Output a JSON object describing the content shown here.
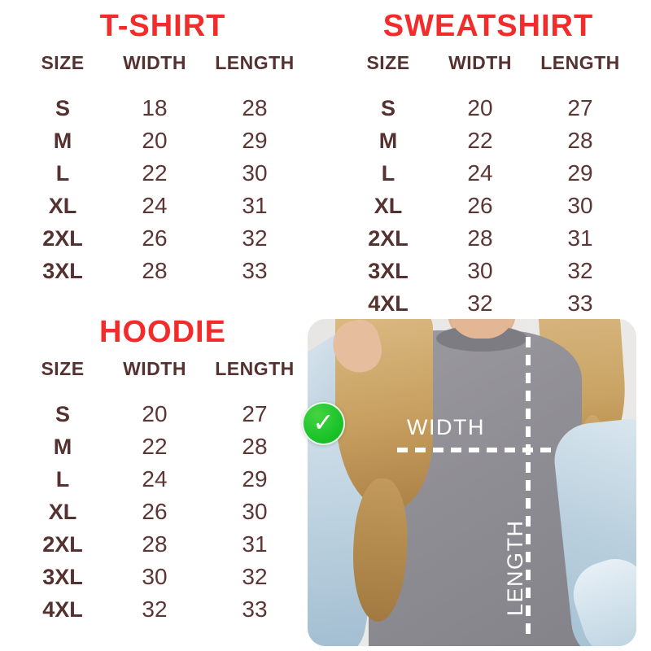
{
  "colors": {
    "title_red": "#f42b2b",
    "table_text": "#553130",
    "check_green": "#1cc32b",
    "annotation_white": "#ffffff"
  },
  "icons": {
    "check": "✓"
  },
  "tables": {
    "tshirt": {
      "title": "T-SHIRT",
      "headers": [
        "SIZE",
        "WIDTH",
        "LENGTH"
      ],
      "rows": [
        [
          "S",
          "18",
          "28"
        ],
        [
          "M",
          "20",
          "29"
        ],
        [
          "L",
          "22",
          "30"
        ],
        [
          "XL",
          "24",
          "31"
        ],
        [
          "2XL",
          "26",
          "32"
        ],
        [
          "3XL",
          "28",
          "33"
        ]
      ]
    },
    "sweatshirt": {
      "title": "SWEATSHIRT",
      "headers": [
        "SIZE",
        "WIDTH",
        "LENGTH"
      ],
      "rows": [
        [
          "S",
          "20",
          "27"
        ],
        [
          "M",
          "22",
          "28"
        ],
        [
          "L",
          "24",
          "29"
        ],
        [
          "XL",
          "26",
          "30"
        ],
        [
          "2XL",
          "28",
          "31"
        ],
        [
          "3XL",
          "30",
          "32"
        ],
        [
          "4XL",
          "32",
          "33"
        ]
      ]
    },
    "hoodie": {
      "title": "HOODIE",
      "headers": [
        "SIZE",
        "WIDTH",
        "LENGTH"
      ],
      "rows": [
        [
          "S",
          "20",
          "27"
        ],
        [
          "M",
          "22",
          "28"
        ],
        [
          "L",
          "24",
          "29"
        ],
        [
          "XL",
          "26",
          "30"
        ],
        [
          "2XL",
          "28",
          "31"
        ],
        [
          "3XL",
          "30",
          "32"
        ],
        [
          "4XL",
          "32",
          "33"
        ]
      ]
    }
  },
  "photo": {
    "width_label": "WIDTH",
    "length_label": "LENGTH"
  }
}
